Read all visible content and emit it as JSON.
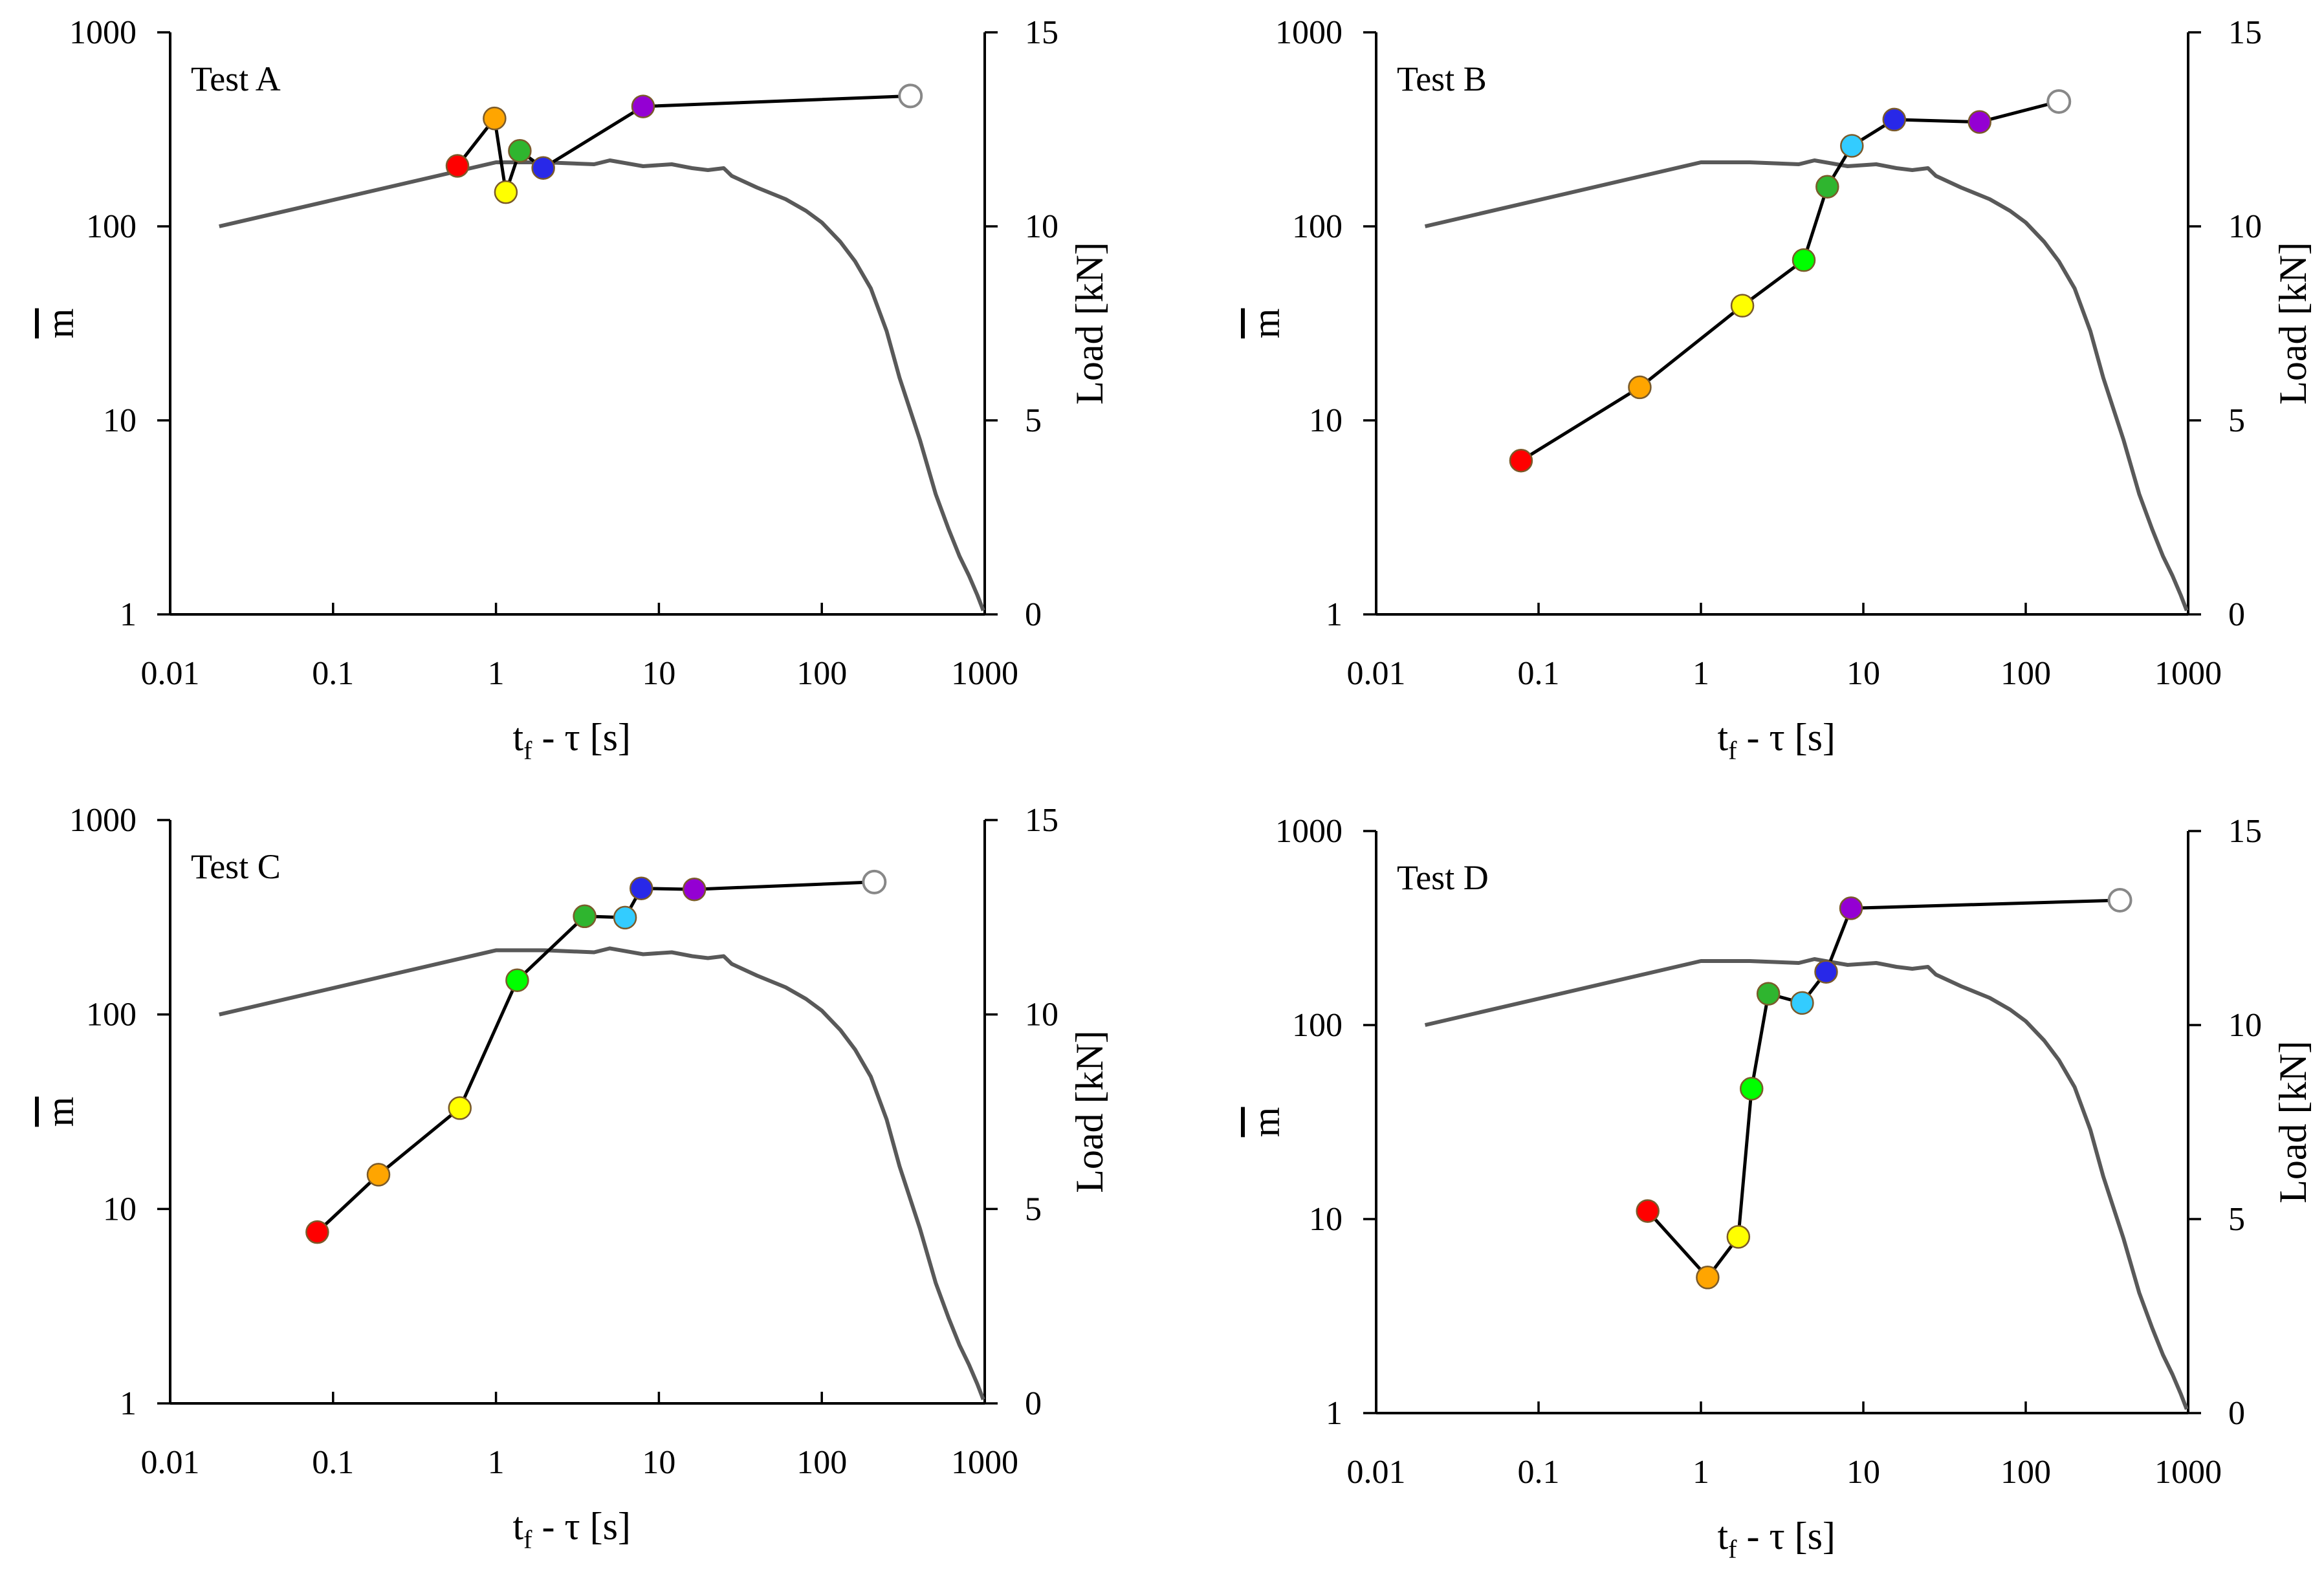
{
  "figure": {
    "panel_colors": {
      "axis": "#000000",
      "load_curve": "#595959",
      "m_series_line": "#000000",
      "point_colors": [
        "#ff0000",
        "#ffa500",
        "#ffff00",
        "#00ff00",
        "#2fb52f",
        "#33ccff",
        "#2828e8",
        "#9400d3",
        "#ffffff"
      ],
      "point_colors_panel_A": [
        "#ff0000",
        "#ffa500",
        "#ffff00",
        "#2fb52f",
        "#2828e8",
        "#9400d3",
        "#ffffff"
      ]
    }
  },
  "chart_data": [
    {
      "type": "line",
      "panel_label": "Test A",
      "xlabel": {
        "main": "t",
        "sub": "f",
        "rest": " - τ [s]"
      },
      "ylabel_left": "m",
      "ylabel_right": "Load [kN]",
      "x_scale": "log",
      "xlim": [
        0.01,
        1000
      ],
      "x_ticks": [
        "0.01",
        "0.1",
        "1",
        "10",
        "100",
        "1000"
      ],
      "y_left_scale": "log",
      "y_left_lim": [
        1,
        1000
      ],
      "y_left_ticks": [
        "1",
        "10",
        "100",
        "1000"
      ],
      "y_right_lim": [
        0,
        15
      ],
      "y_right_ticks": [
        "0",
        "5",
        "10",
        "15"
      ],
      "series": [
        {
          "axis": "left",
          "x": [
            0.58,
            0.98,
            1.15,
            1.4,
            1.95,
            8,
            350
          ],
          "y": [
            205,
            360,
            150,
            245,
            200,
            415,
            470
          ]
        },
        {
          "axis": "right",
          "x": [
            0.02,
            1.0,
            2,
            4,
            5,
            8,
            12,
            16,
            20,
            25,
            28,
            40,
            60,
            80,
            100,
            130,
            160,
            200,
            250,
            300,
            400,
            500,
            600,
            700,
            800,
            900,
            980
          ],
          "y": [
            10,
            11.65,
            11.65,
            11.6,
            11.7,
            11.55,
            11.6,
            11.5,
            11.45,
            11.5,
            11.3,
            11.0,
            10.7,
            10.4,
            10.1,
            9.6,
            9.1,
            8.4,
            7.3,
            6.1,
            4.5,
            3.1,
            2.2,
            1.5,
            1.0,
            0.5,
            0.1
          ]
        }
      ]
    },
    {
      "type": "line",
      "panel_label": "Test B",
      "xlabel": {
        "main": "t",
        "sub": "f",
        "rest": " - τ [s]"
      },
      "ylabel_left": "m",
      "ylabel_right": "Load [kN]",
      "x_scale": "log",
      "xlim": [
        0.01,
        1000
      ],
      "x_ticks": [
        "0.01",
        "0.1",
        "1",
        "10",
        "100",
        "1000"
      ],
      "y_left_scale": "log",
      "y_left_lim": [
        1,
        1000
      ],
      "y_left_ticks": [
        "1",
        "10",
        "100",
        "1000"
      ],
      "y_right_lim": [
        0,
        15
      ],
      "y_right_ticks": [
        "0",
        "5",
        "10",
        "15"
      ],
      "series": [
        {
          "axis": "left",
          "x": [
            0.078,
            0.42,
            1.8,
            4.3,
            6,
            8.5,
            15.5,
            52,
            160
          ],
          "y": [
            6.2,
            14.8,
            39,
            67,
            160,
            260,
            355,
            345,
            440
          ]
        },
        {
          "axis": "right",
          "x": [
            0.02,
            1.0,
            2,
            4,
            5,
            8,
            12,
            16,
            20,
            25,
            28,
            40,
            60,
            80,
            100,
            130,
            160,
            200,
            250,
            300,
            400,
            500,
            600,
            700,
            800,
            900,
            980
          ],
          "y": [
            10,
            11.65,
            11.65,
            11.6,
            11.7,
            11.55,
            11.6,
            11.5,
            11.45,
            11.5,
            11.3,
            11.0,
            10.7,
            10.4,
            10.1,
            9.6,
            9.1,
            8.4,
            7.3,
            6.1,
            4.5,
            3.1,
            2.2,
            1.5,
            1.0,
            0.5,
            0.1
          ]
        }
      ]
    },
    {
      "type": "line",
      "panel_label": "Test C",
      "xlabel": {
        "main": "t",
        "sub": "f",
        "rest": " - τ [s]"
      },
      "ylabel_left": "m",
      "ylabel_right": "Load [kN]",
      "x_scale": "log",
      "xlim": [
        0.01,
        1000
      ],
      "x_ticks": [
        "0.01",
        "0.1",
        "1",
        "10",
        "100",
        "1000"
      ],
      "y_left_scale": "log",
      "y_left_lim": [
        1,
        1000
      ],
      "y_left_ticks": [
        "1",
        "10",
        "100",
        "1000"
      ],
      "y_right_lim": [
        0,
        15
      ],
      "y_right_ticks": [
        "0",
        "5",
        "10",
        "15"
      ],
      "series": [
        {
          "axis": "left",
          "x": [
            0.08,
            0.19,
            0.6,
            1.35,
            3.5,
            6.2,
            7.8,
            16.5,
            210
          ],
          "y": [
            7.6,
            15,
            33,
            150,
            320,
            315,
            445,
            440,
            480
          ]
        },
        {
          "axis": "right",
          "x": [
            0.02,
            1.0,
            2,
            4,
            5,
            8,
            12,
            16,
            20,
            25,
            28,
            40,
            60,
            80,
            100,
            130,
            160,
            200,
            250,
            300,
            400,
            500,
            600,
            700,
            800,
            900,
            980
          ],
          "y": [
            10,
            11.65,
            11.65,
            11.6,
            11.7,
            11.55,
            11.6,
            11.5,
            11.45,
            11.5,
            11.3,
            11.0,
            10.7,
            10.4,
            10.1,
            9.6,
            9.1,
            8.4,
            7.3,
            6.1,
            4.5,
            3.1,
            2.2,
            1.5,
            1.0,
            0.5,
            0.1
          ]
        }
      ]
    },
    {
      "type": "line",
      "panel_label": "Test D",
      "xlabel": {
        "main": "t",
        "sub": "f",
        "rest": " - τ [s]"
      },
      "ylabel_left": "m",
      "ylabel_right": "Load [kN]",
      "x_scale": "log",
      "xlim": [
        0.01,
        1000
      ],
      "x_ticks": [
        "0.01",
        "0.1",
        "1",
        "10",
        "100",
        "1000"
      ],
      "y_left_scale": "log",
      "y_left_lim": [
        1,
        1000
      ],
      "y_left_ticks": [
        "1",
        "10",
        "100",
        "1000"
      ],
      "y_right_lim": [
        0,
        15
      ],
      "y_right_ticks": [
        "0",
        "5",
        "10",
        "15"
      ],
      "series": [
        {
          "axis": "left",
          "x": [
            0.47,
            1.1,
            1.7,
            2.05,
            2.6,
            4.2,
            5.9,
            8.4,
            380
          ],
          "y": [
            11,
            5,
            8.1,
            47,
            145,
            130,
            188,
            400,
            440
          ]
        },
        {
          "axis": "right",
          "x": [
            0.02,
            1.0,
            2,
            4,
            5,
            8,
            12,
            16,
            20,
            25,
            28,
            40,
            60,
            80,
            100,
            130,
            160,
            200,
            250,
            300,
            400,
            500,
            600,
            700,
            800,
            900,
            980
          ],
          "y": [
            10,
            11.65,
            11.65,
            11.6,
            11.7,
            11.55,
            11.6,
            11.5,
            11.45,
            11.5,
            11.3,
            11.0,
            10.7,
            10.4,
            10.1,
            9.6,
            9.1,
            8.4,
            7.3,
            6.1,
            4.5,
            3.1,
            2.2,
            1.5,
            1.0,
            0.5,
            0.1
          ]
        }
      ]
    }
  ]
}
